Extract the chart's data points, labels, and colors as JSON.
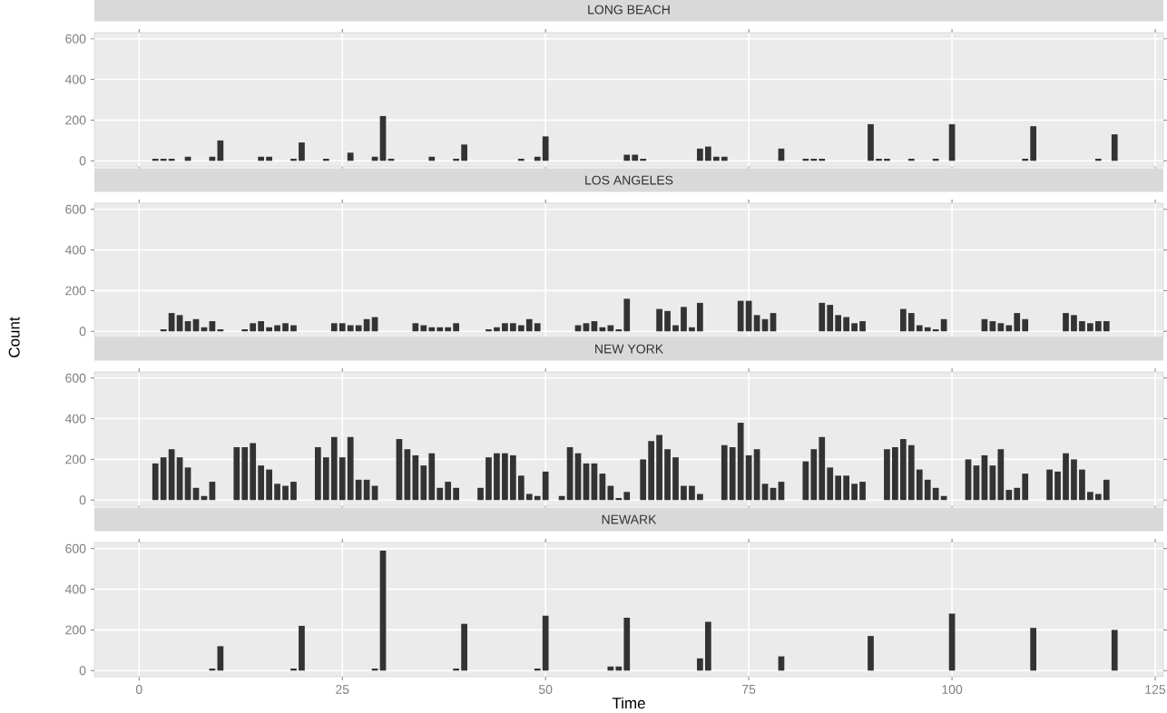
{
  "chart_data": [
    {
      "type": "bar",
      "title": "LONG BEACH",
      "color": "#333333",
      "grid": true,
      "tick_labels": "y",
      "xlim": [
        -5.5,
        126
      ],
      "xticks": [
        0,
        25,
        50,
        75,
        100,
        125
      ],
      "ylim": [
        -30,
        630
      ],
      "yticks": [
        0,
        200,
        400,
        600
      ],
      "x": [
        1,
        2,
        3,
        4,
        5,
        6,
        7,
        8,
        9,
        10,
        11,
        12,
        13,
        14,
        15,
        16,
        17,
        18,
        19,
        20,
        21,
        22,
        23,
        24,
        25,
        26,
        27,
        28,
        29,
        30,
        31,
        32,
        33,
        34,
        35,
        36,
        37,
        38,
        39,
        40,
        41,
        42,
        43,
        44,
        45,
        46,
        47,
        48,
        49,
        50,
        51,
        52,
        53,
        54,
        55,
        56,
        57,
        58,
        59,
        60,
        61,
        62,
        63,
        64,
        65,
        66,
        67,
        68,
        69,
        70,
        71,
        72,
        73,
        74,
        75,
        76,
        77,
        78,
        79,
        80,
        81,
        82,
        83,
        84,
        85,
        86,
        87,
        88,
        89,
        90,
        91,
        92,
        93,
        94,
        95,
        96,
        97,
        98,
        99,
        100,
        101,
        102,
        103,
        104,
        105,
        106,
        107,
        108,
        109,
        110,
        111,
        112,
        113,
        114,
        115,
        116,
        117,
        118,
        119,
        120
      ],
      "values": [
        0,
        10,
        10,
        10,
        0,
        20,
        0,
        0,
        20,
        100,
        0,
        0,
        0,
        0,
        20,
        20,
        0,
        0,
        10,
        90,
        0,
        0,
        10,
        0,
        0,
        40,
        0,
        0,
        20,
        220,
        10,
        0,
        0,
        0,
        0,
        20,
        0,
        0,
        10,
        80,
        0,
        0,
        0,
        0,
        0,
        0,
        10,
        0,
        20,
        120,
        0,
        0,
        0,
        0,
        0,
        0,
        0,
        0,
        0,
        30,
        30,
        10,
        0,
        0,
        0,
        0,
        0,
        0,
        60,
        70,
        20,
        20,
        0,
        0,
        0,
        0,
        0,
        0,
        60,
        0,
        0,
        10,
        10,
        10,
        0,
        0,
        0,
        0,
        0,
        180,
        10,
        10,
        0,
        0,
        10,
        0,
        0,
        10,
        0,
        180,
        0,
        0,
        0,
        0,
        0,
        0,
        0,
        0,
        10,
        170,
        0,
        0,
        0,
        0,
        0,
        0,
        0,
        10,
        0,
        130
      ]
    },
    {
      "type": "bar",
      "title": "LOS ANGELES",
      "ylabel": "Count",
      "color": "#333333",
      "grid": true,
      "tick_labels": "y",
      "xlim": [
        -5.5,
        126
      ],
      "xticks": [
        0,
        25,
        50,
        75,
        100,
        125
      ],
      "ylim": [
        -30,
        630
      ],
      "yticks": [
        0,
        200,
        400,
        600
      ],
      "x": [
        1,
        2,
        3,
        4,
        5,
        6,
        7,
        8,
        9,
        10,
        11,
        12,
        13,
        14,
        15,
        16,
        17,
        18,
        19,
        20,
        21,
        22,
        23,
        24,
        25,
        26,
        27,
        28,
        29,
        30,
        31,
        32,
        33,
        34,
        35,
        36,
        37,
        38,
        39,
        40,
        41,
        42,
        43,
        44,
        45,
        46,
        47,
        48,
        49,
        50,
        51,
        52,
        53,
        54,
        55,
        56,
        57,
        58,
        59,
        60,
        61,
        62,
        63,
        64,
        65,
        66,
        67,
        68,
        69,
        70,
        71,
        72,
        73,
        74,
        75,
        76,
        77,
        78,
        79,
        80,
        81,
        82,
        83,
        84,
        85,
        86,
        87,
        88,
        89,
        90,
        91,
        92,
        93,
        94,
        95,
        96,
        97,
        98,
        99,
        100,
        101,
        102,
        103,
        104,
        105,
        106,
        107,
        108,
        109,
        110,
        111,
        112,
        113,
        114,
        115,
        116,
        117,
        118,
        119,
        120
      ],
      "values": [
        0,
        0,
        10,
        90,
        80,
        50,
        60,
        20,
        50,
        10,
        0,
        0,
        10,
        40,
        50,
        20,
        30,
        40,
        30,
        0,
        0,
        0,
        0,
        40,
        40,
        30,
        30,
        60,
        70,
        0,
        0,
        0,
        0,
        40,
        30,
        20,
        20,
        20,
        40,
        0,
        0,
        0,
        10,
        20,
        40,
        40,
        30,
        60,
        40,
        0,
        0,
        0,
        0,
        30,
        40,
        50,
        20,
        30,
        10,
        160,
        0,
        0,
        0,
        110,
        100,
        30,
        120,
        20,
        140,
        0,
        0,
        0,
        0,
        150,
        150,
        80,
        60,
        90,
        0,
        0,
        0,
        0,
        0,
        140,
        130,
        80,
        70,
        40,
        50,
        0,
        0,
        0,
        0,
        110,
        90,
        30,
        20,
        10,
        60,
        0,
        0,
        0,
        0,
        60,
        50,
        40,
        30,
        90,
        60,
        0,
        0,
        0,
        0,
        90,
        80,
        50,
        40,
        50,
        50,
        0
      ]
    },
    {
      "type": "bar",
      "title": "NEW YORK",
      "color": "#333333",
      "grid": true,
      "tick_labels": "y",
      "xlim": [
        -5.5,
        126
      ],
      "xticks": [
        0,
        25,
        50,
        75,
        100,
        125
      ],
      "ylim": [
        -30,
        630
      ],
      "yticks": [
        0,
        200,
        400,
        600
      ],
      "x": [
        1,
        2,
        3,
        4,
        5,
        6,
        7,
        8,
        9,
        10,
        11,
        12,
        13,
        14,
        15,
        16,
        17,
        18,
        19,
        20,
        21,
        22,
        23,
        24,
        25,
        26,
        27,
        28,
        29,
        30,
        31,
        32,
        33,
        34,
        35,
        36,
        37,
        38,
        39,
        40,
        41,
        42,
        43,
        44,
        45,
        46,
        47,
        48,
        49,
        50,
        51,
        52,
        53,
        54,
        55,
        56,
        57,
        58,
        59,
        60,
        61,
        62,
        63,
        64,
        65,
        66,
        67,
        68,
        69,
        70,
        71,
        72,
        73,
        74,
        75,
        76,
        77,
        78,
        79,
        80,
        81,
        82,
        83,
        84,
        85,
        86,
        87,
        88,
        89,
        90,
        91,
        92,
        93,
        94,
        95,
        96,
        97,
        98,
        99,
        100,
        101,
        102,
        103,
        104,
        105,
        106,
        107,
        108,
        109,
        110,
        111,
        112,
        113,
        114,
        115,
        116,
        117,
        118,
        119,
        120
      ],
      "values": [
        0,
        180,
        210,
        250,
        210,
        160,
        60,
        20,
        90,
        0,
        0,
        260,
        260,
        280,
        170,
        150,
        80,
        70,
        90,
        0,
        0,
        260,
        210,
        310,
        210,
        310,
        100,
        100,
        70,
        0,
        0,
        300,
        250,
        220,
        170,
        230,
        60,
        90,
        60,
        0,
        0,
        60,
        210,
        230,
        230,
        220,
        120,
        30,
        20,
        140,
        0,
        20,
        260,
        230,
        180,
        180,
        130,
        70,
        10,
        40,
        0,
        200,
        290,
        320,
        250,
        210,
        70,
        70,
        30,
        0,
        0,
        270,
        260,
        380,
        220,
        250,
        80,
        60,
        90,
        0,
        0,
        190,
        250,
        310,
        160,
        120,
        120,
        80,
        90,
        0,
        0,
        250,
        260,
        300,
        270,
        150,
        100,
        60,
        20,
        0,
        0,
        200,
        170,
        220,
        170,
        250,
        50,
        60,
        130,
        0,
        0,
        150,
        140,
        230,
        200,
        150,
        40,
        30,
        100,
        0
      ]
    },
    {
      "type": "bar",
      "title": "NEWARK",
      "xlabel": "Time",
      "color": "#333333",
      "grid": true,
      "xlim": [
        -5.5,
        126
      ],
      "xticks": [
        0,
        25,
        50,
        75,
        100,
        125
      ],
      "ylim": [
        -30,
        630
      ],
      "yticks": [
        0,
        200,
        400,
        600
      ],
      "x": [
        1,
        2,
        3,
        4,
        5,
        6,
        7,
        8,
        9,
        10,
        11,
        12,
        13,
        14,
        15,
        16,
        17,
        18,
        19,
        20,
        21,
        22,
        23,
        24,
        25,
        26,
        27,
        28,
        29,
        30,
        31,
        32,
        33,
        34,
        35,
        36,
        37,
        38,
        39,
        40,
        41,
        42,
        43,
        44,
        45,
        46,
        47,
        48,
        49,
        50,
        51,
        52,
        53,
        54,
        55,
        56,
        57,
        58,
        59,
        60,
        61,
        62,
        63,
        64,
        65,
        66,
        67,
        68,
        69,
        70,
        71,
        72,
        73,
        74,
        75,
        76,
        77,
        78,
        79,
        80,
        81,
        82,
        83,
        84,
        85,
        86,
        87,
        88,
        89,
        90,
        91,
        92,
        93,
        94,
        95,
        96,
        97,
        98,
        99,
        100,
        101,
        102,
        103,
        104,
        105,
        106,
        107,
        108,
        109,
        110,
        111,
        112,
        113,
        114,
        115,
        116,
        117,
        118,
        119,
        120
      ],
      "values": [
        0,
        0,
        0,
        0,
        0,
        0,
        0,
        0,
        10,
        120,
        0,
        0,
        0,
        0,
        0,
        0,
        0,
        0,
        10,
        220,
        0,
        0,
        0,
        0,
        0,
        0,
        0,
        0,
        10,
        590,
        0,
        0,
        0,
        0,
        0,
        0,
        0,
        0,
        10,
        230,
        0,
        0,
        0,
        0,
        0,
        0,
        0,
        0,
        10,
        270,
        0,
        0,
        0,
        0,
        0,
        0,
        0,
        20,
        20,
        260,
        0,
        0,
        0,
        0,
        0,
        0,
        0,
        0,
        60,
        240,
        0,
        0,
        0,
        0,
        0,
        0,
        0,
        0,
        70,
        0,
        0,
        0,
        0,
        0,
        0,
        0,
        0,
        0,
        0,
        170,
        0,
        0,
        0,
        0,
        0,
        0,
        0,
        0,
        0,
        280,
        0,
        0,
        0,
        0,
        0,
        0,
        0,
        0,
        0,
        210,
        0,
        0,
        0,
        0,
        0,
        0,
        0,
        0,
        0,
        200
      ]
    }
  ]
}
